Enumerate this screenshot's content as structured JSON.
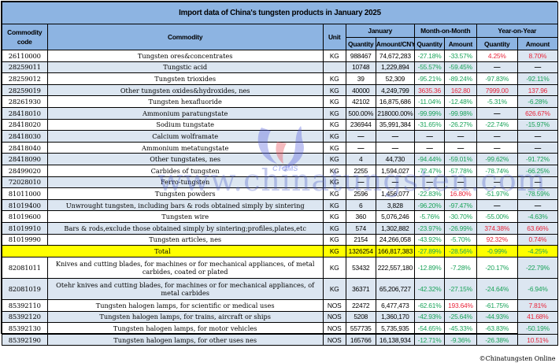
{
  "title": "Import data of China's tungsten products in January 2025",
  "headers": {
    "code": "Commodity code",
    "commodity": "Commodity",
    "unit": "Unit",
    "january": "January",
    "mom": "Month-on-Month",
    "yoy": "Year-on-Year",
    "quantity": "Quantity",
    "amount_cny": "Amount/CNY",
    "mom_quantity": "Quantity",
    "mom_amount": "Amount",
    "yoy_quantity": "Quantity",
    "yoy_amount": "Amount"
  },
  "colors": {
    "header_bg": "#8db4e2",
    "alt_row_bg": "#dce6f1",
    "total_bg": "#ffff00",
    "negative": "#1aa35a",
    "positive": "#e8263b"
  },
  "rows": [
    {
      "code": "26110000",
      "commodity": "Tungsten ores&concentrates",
      "unit": "KG",
      "qty": "988467",
      "amt": "74,672,283",
      "mom_qty": "-27.18%",
      "mom_amt": "-33.57%",
      "yoy_qty": "4.25%",
      "yoy_amt": "8.70%"
    },
    {
      "code": "28259011",
      "commodity": "Tungstic acid",
      "unit": "",
      "qty": "10748",
      "amt": "1,229,894",
      "mom_qty": "-55.57%",
      "mom_amt": "-59.45%",
      "yoy_qty": "—",
      "yoy_amt": "—"
    },
    {
      "code": "28259012",
      "commodity": "Tungsten trioxides",
      "unit": "KG",
      "qty": "39",
      "amt": "52,309",
      "mom_qty": "-95.21%",
      "mom_amt": "-89.24%",
      "yoy_qty": "-97.83%",
      "yoy_amt": "-92.11%"
    },
    {
      "code": "28259019",
      "commodity": "Other tungsten oxides&hydroxides, nes",
      "unit": "KG",
      "qty": "40000",
      "amt": "4,249,799",
      "mom_qty": "3635.36",
      "mom_amt": "162.80",
      "yoy_qty": "7999.00",
      "yoy_amt": "137.96"
    },
    {
      "code": "28261930",
      "commodity": "Tungsten hexafluoride",
      "unit": "KG",
      "qty": "42102",
      "amt": "16,875,686",
      "mom_qty": "-11.04%",
      "mom_amt": "-12.48%",
      "yoy_qty": "-5.31%",
      "yoy_amt": "-6.28%"
    },
    {
      "code": "28418010",
      "commodity": "Ammonium paratungstate",
      "unit": "KG",
      "qty": "500.00%",
      "amt": "218000.00%",
      "mom_qty": "-99.99%",
      "mom_amt": "-99.98%",
      "yoy_qty": "—",
      "yoy_amt": "626.67%"
    },
    {
      "code": "28418020",
      "commodity": "Sodium tungstate",
      "unit": "KG",
      "qty": "236944",
      "amt": "35,991,384",
      "mom_qty": "-31.65%",
      "mom_amt": "-26.27%",
      "yoy_qty": "-22.74%",
      "yoy_amt": "-15.97%"
    },
    {
      "code": "28418030",
      "commodity": "Calcium wolframate",
      "unit": "KG",
      "qty": "—",
      "amt": "—",
      "mom_qty": "—",
      "mom_amt": "—",
      "yoy_qty": "—",
      "yoy_amt": "—"
    },
    {
      "code": "28418040",
      "commodity": "Ammonium metatungstate",
      "unit": "KG",
      "qty": "—",
      "amt": "—",
      "mom_qty": "—",
      "mom_amt": "—",
      "yoy_qty": "—",
      "yoy_amt": "—"
    },
    {
      "code": "28418090",
      "commodity": "Other tungstates, nes",
      "unit": "KG",
      "qty": "4",
      "amt": "44,730",
      "mom_qty": "-94.44%",
      "mom_amt": "-59.01%",
      "yoy_qty": "-99.62%",
      "yoy_amt": "-91.72%"
    },
    {
      "code": "28499020",
      "commodity": "Carbides of tungsten",
      "unit": "KG",
      "qty": "2255",
      "amt": "1,594,027",
      "mom_qty": "-72.47%",
      "mom_amt": "-57.78%",
      "yoy_qty": "-78.74%",
      "yoy_amt": "-66.25%"
    },
    {
      "code": "72028010",
      "commodity": "Ferro-tungsten",
      "unit": "KG",
      "qty": "—",
      "amt": "—",
      "mom_qty": "—",
      "mom_amt": "—",
      "yoy_qty": "—",
      "yoy_amt": "—"
    },
    {
      "code": "81011000",
      "commodity": "Tungsten powders",
      "unit": "KG",
      "qty": "2596",
      "amt": "1,456,077",
      "mom_qty": "-22.83%",
      "mom_amt": "16.80%",
      "yoy_qty": "-51.97%",
      "yoy_amt": "-78.59%"
    },
    {
      "code": "81019400",
      "commodity": "Unwrought tungsten, including bars & rods obtained simply by sintering",
      "unit": "KG",
      "qty": "6",
      "amt": "3,828",
      "mom_qty": "-96.20%",
      "mom_amt": "-97.47%",
      "yoy_qty": "—",
      "yoy_amt": "—"
    },
    {
      "code": "81019600",
      "commodity": "Tungsten wire",
      "unit": "KG",
      "qty": "360",
      "amt": "5,076,246",
      "mom_qty": "-5.76%",
      "mom_amt": "-30.70%",
      "yoy_qty": "-55.00%",
      "yoy_amt": "-4.63%"
    },
    {
      "code": "81019910",
      "commodity": "Bars & rods,exclude those obtained simply by sintering;profiles,plates,etc",
      "unit": "KG",
      "qty": "574",
      "amt": "1,302,882",
      "mom_qty": "-23.97%",
      "mom_amt": "-26.99%",
      "yoy_qty": "374.38%",
      "yoy_amt": "63.66%"
    },
    {
      "code": "81019990",
      "commodity": "Tungsten articles, nes",
      "unit": "KG",
      "qty": "2154",
      "amt": "24,266,058",
      "mom_qty": "-43.92%",
      "mom_amt": "-5.70%",
      "yoy_qty": "92.32%",
      "yoy_amt": "0.74%"
    }
  ],
  "total": {
    "label": "Total",
    "unit": "KG",
    "qty": "1326254",
    "amt": "166,817,383",
    "mom_qty": "-27.89%",
    "mom_amt": "-28.56%",
    "yoy_qty": "-0.99%",
    "yoy_amt": "-4.25%"
  },
  "rows2": [
    {
      "code": "82081011",
      "commodity": "Knives and cutting blades, for machines or for mechanical appliances, of metal carbides, coated or plated",
      "unit": "KG",
      "qty": "53432",
      "amt": "222,557,180",
      "mom_qty": "-12.89%",
      "mom_amt": "-7.28%",
      "yoy_qty": "-20.17%",
      "yoy_amt": "-22.79%"
    },
    {
      "code": "82081019",
      "commodity": "Otehr knives and cutting blades, for machines or for mechanical appliances, of metal carbides",
      "unit": "KG",
      "qty": "36371",
      "amt": "65,206,727",
      "mom_qty": "-42.32%",
      "mom_amt": "-27.15%",
      "yoy_qty": "-24.64%",
      "yoy_amt": "-6.94%"
    },
    {
      "code": "85392110",
      "commodity": "Tungsten halogen lamps, for scientific or medical uses",
      "unit": "NOS",
      "qty": "22472",
      "amt": "6,477,473",
      "mom_qty": "-62.61%",
      "mom_amt": "193.64%",
      "yoy_qty": "-61.75%",
      "yoy_amt": "7.81%"
    },
    {
      "code": "85392120",
      "commodity": "Tungsten halogen lamps, for trains, aircraft or ships",
      "unit": "NOS",
      "qty": "5208",
      "amt": "1,360,170",
      "mom_qty": "-42.93%",
      "mom_amt": "-25.64%",
      "yoy_qty": "-44.93%",
      "yoy_amt": "41.68%"
    },
    {
      "code": "85392130",
      "commodity": "Tungsten halogen lamps, for motor vehicles",
      "unit": "NOS",
      "qty": "557735",
      "amt": "5,735,935",
      "mom_qty": "-54.65%",
      "mom_amt": "-45.33%",
      "yoy_qty": "-63.83%",
      "yoy_amt": "-50.19%"
    },
    {
      "code": "85392190",
      "commodity": "Tungsten halogen lamps, for other uses nes",
      "unit": "NOS",
      "qty": "165766",
      "amt": "16,138,934",
      "mom_qty": "-12.71%",
      "mom_amt": "-9.36%",
      "yoy_qty": "-26.38%",
      "yoy_amt": "10.51%"
    }
  ],
  "footer": "©Chinatungsten Online",
  "watermark": {
    "text": "www.chinatungsten.com",
    "logo_text": "CTOMS",
    "logo_icon": "ctoms-logo-icon"
  }
}
